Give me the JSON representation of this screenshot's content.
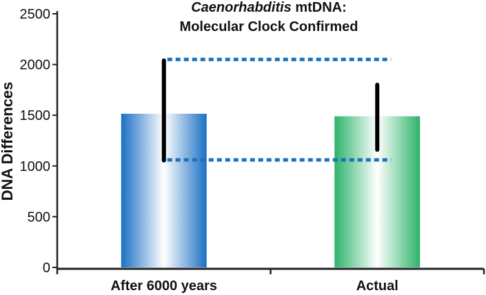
{
  "chart_data": {
    "type": "bar",
    "title": {
      "line1_italic": "Caenorhabditis",
      "line1_rest": " mtDNA:",
      "line2": "Molecular Clock Confirmed"
    },
    "xlabel": "",
    "ylabel": "DNA Differences",
    "ylim": [
      0,
      2500
    ],
    "yticks": [
      "0",
      "500",
      "1000",
      "1500",
      "2000",
      "2500"
    ],
    "grid": false,
    "categories": [
      "After 6000 years",
      "Actual"
    ],
    "values": [
      1515,
      1490
    ],
    "error_bars": [
      {
        "low": 1055,
        "high": 2040
      },
      {
        "low": 1160,
        "high": 1800
      }
    ],
    "reference_lines": [
      {
        "y": 2050,
        "style": "dotted"
      },
      {
        "y": 1060,
        "style": "dotted"
      }
    ],
    "colors": {
      "bar_1": "#1a6fc4",
      "bar_2": "#2bb36a",
      "error_bar": "#000000",
      "reference_line": "#1a72bd",
      "axis": "#222222"
    }
  }
}
